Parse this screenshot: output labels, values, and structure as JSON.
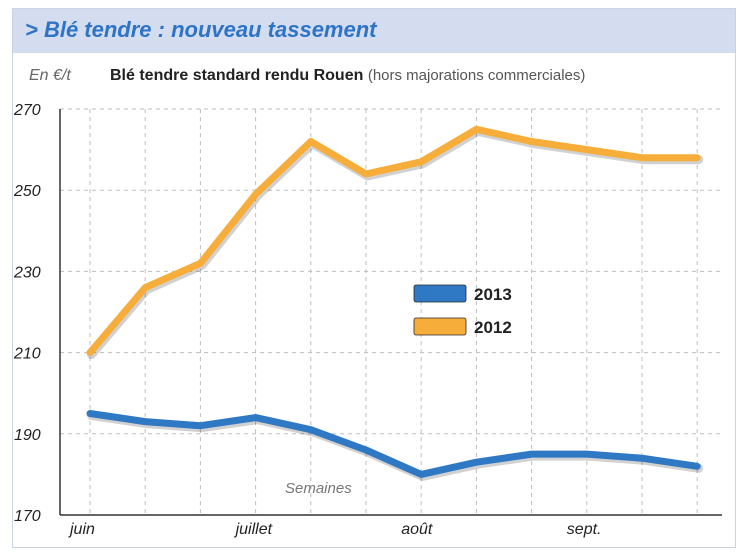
{
  "header": {
    "title": "> Blé tendre : nouveau tassement"
  },
  "chart_data": {
    "type": "line",
    "title": "Blé tendre standard rendu Rouen",
    "subtitle": "(hors majorations commerciales)",
    "ylabel": "En €/t",
    "xlabel": "Semaines",
    "ylim": [
      170,
      270
    ],
    "yticks": [
      170,
      190,
      210,
      230,
      250,
      270
    ],
    "weeks": 12,
    "month_labels": [
      {
        "label": "juin",
        "week": 1
      },
      {
        "label": "juillet",
        "week": 4
      },
      {
        "label": "août",
        "week": 7
      },
      {
        "label": "sept.",
        "week": 10
      }
    ],
    "grid": true,
    "legend_position": "center-right",
    "series": [
      {
        "name": "2013",
        "color": "#2f78c4",
        "values": [
          195,
          193,
          192,
          194,
          191,
          186,
          180,
          183,
          185,
          185,
          184,
          182
        ]
      },
      {
        "name": "2012",
        "color": "#f7ad3a",
        "values": [
          210,
          226,
          232,
          249,
          262,
          254,
          257,
          265,
          262,
          260,
          258,
          258
        ]
      }
    ]
  }
}
